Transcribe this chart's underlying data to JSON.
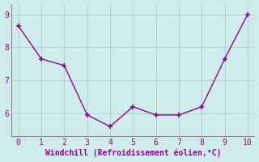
{
  "x": [
    0,
    1,
    2,
    3,
    4,
    5,
    6,
    7,
    8,
    9,
    10
  ],
  "y": [
    8.65,
    7.65,
    7.45,
    5.95,
    5.6,
    6.2,
    5.95,
    5.95,
    6.2,
    7.65,
    9.0
  ],
  "line_color": "#990099",
  "marker": "+",
  "marker_size": 4,
  "xlabel": "Windchill (Refroidissement éolien,°C)",
  "xlabel_color": "#990099",
  "ylabel_ticks": [
    6,
    7,
    8,
    9
  ],
  "xticks": [
    0,
    1,
    2,
    3,
    4,
    5,
    6,
    7,
    8,
    9,
    10
  ],
  "xlim": [
    -0.3,
    10.3
  ],
  "ylim": [
    5.3,
    9.3
  ],
  "background_color": "#ceecea",
  "grid_color": "#aacccc",
  "spine_color": "#888888",
  "tick_color": "#990099",
  "label_fontsize": 7,
  "linewidth": 1.0
}
